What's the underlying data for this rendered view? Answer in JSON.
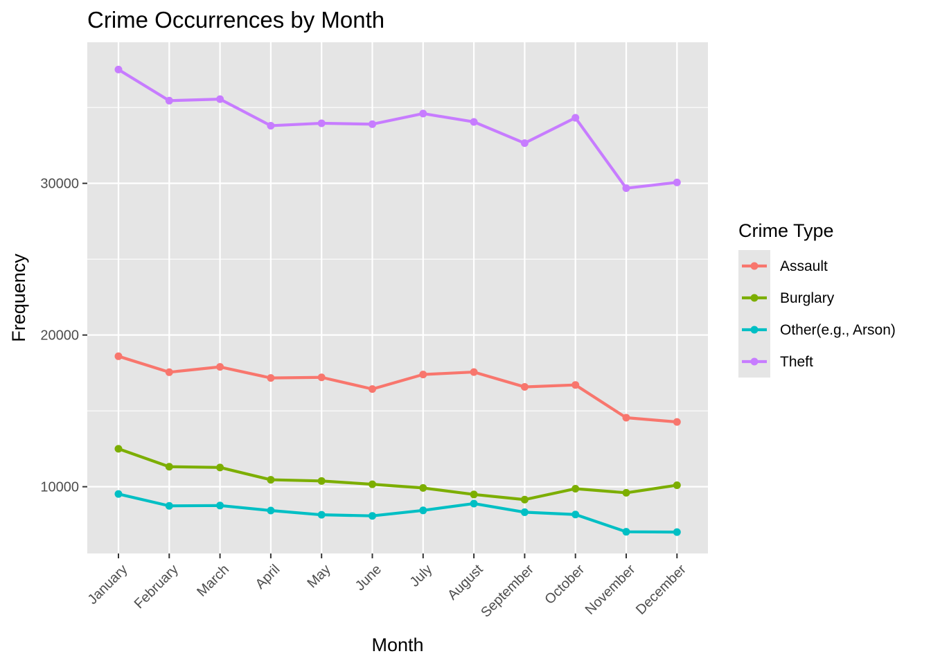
{
  "chart_data": {
    "type": "line",
    "title": "Crime Occurrences by Month",
    "xlabel": "Month",
    "ylabel": "Frequency",
    "categories": [
      "January",
      "February",
      "March",
      "April",
      "May",
      "June",
      "July",
      "August",
      "September",
      "October",
      "November",
      "December"
    ],
    "y_ticks": [
      10000,
      20000,
      30000
    ],
    "y_tick_labels": [
      "10000",
      "20000",
      "30000"
    ],
    "ylim": [
      5600,
      39300
    ],
    "grid": true,
    "legend": {
      "title": "Crime Type",
      "placement": "right"
    },
    "series": [
      {
        "name": "Assault",
        "color": "#f8766d",
        "values": [
          18600,
          17550,
          17900,
          17170,
          17210,
          16440,
          17400,
          17560,
          16580,
          16710,
          14550,
          14270
        ]
      },
      {
        "name": "Burglary",
        "color": "#7cae00",
        "values": [
          12500,
          11320,
          11270,
          10460,
          10380,
          10160,
          9920,
          9490,
          9150,
          9870,
          9600,
          10100
        ]
      },
      {
        "name": "Other(e.g., Arson)",
        "color": "#00bfc4",
        "values": [
          9520,
          8740,
          8760,
          8430,
          8150,
          8080,
          8440,
          8890,
          8320,
          8170,
          7030,
          7010
        ]
      },
      {
        "name": "Theft",
        "color": "#c77cff",
        "values": [
          37500,
          35450,
          35550,
          33800,
          33960,
          33900,
          34600,
          34050,
          32650,
          34320,
          29680,
          30060
        ]
      }
    ],
    "panel_background": "#e5e5e5",
    "gridline_color": "#ffffff"
  }
}
